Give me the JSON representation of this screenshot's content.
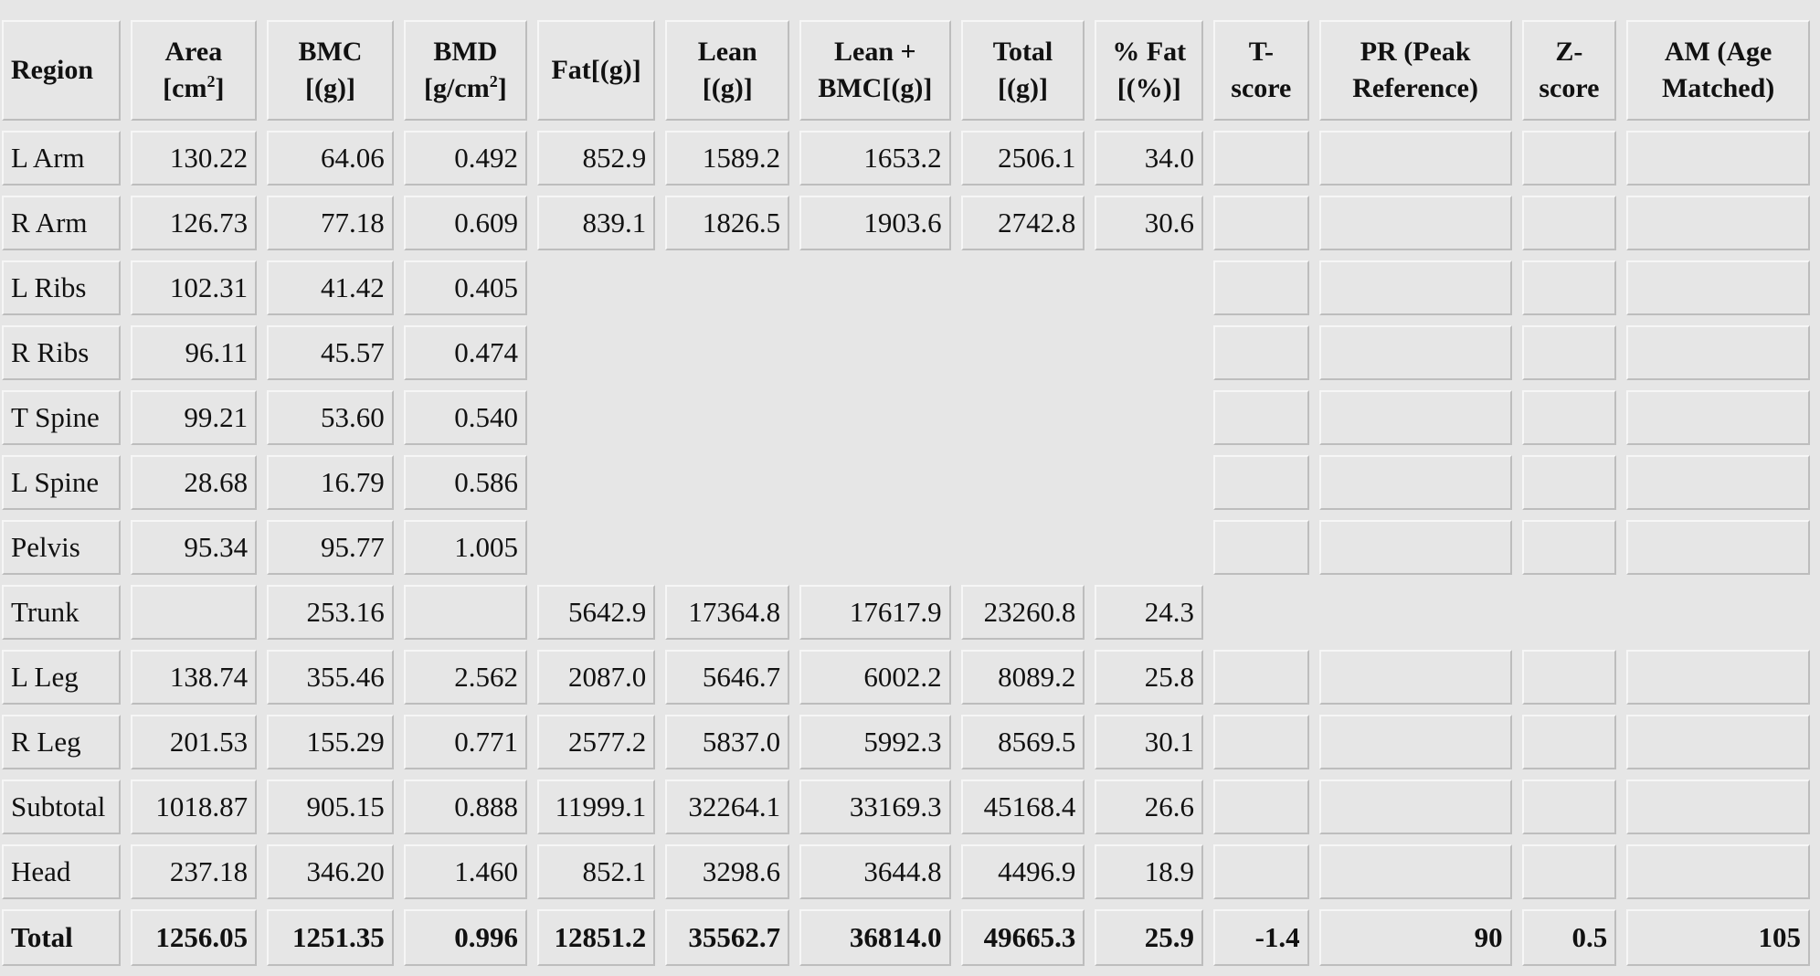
{
  "headers": [
    {
      "lines": [
        "Region"
      ]
    },
    {
      "lines": [
        "Area",
        "[cm2]"
      ]
    },
    {
      "lines": [
        "BMC",
        "[(g)]"
      ]
    },
    {
      "lines": [
        "BMD",
        "[g/cm2]"
      ]
    },
    {
      "lines": [
        "Fat[(g)]"
      ]
    },
    {
      "lines": [
        "Lean",
        "[(g)]"
      ]
    },
    {
      "lines": [
        "Lean +",
        "BMC[(g)]"
      ]
    },
    {
      "lines": [
        "Total",
        "[(g)]"
      ]
    },
    {
      "lines": [
        "% Fat",
        "[(%)]"
      ]
    },
    {
      "lines": [
        "T-",
        "score"
      ]
    },
    {
      "lines": [
        "PR (Peak",
        "Reference)"
      ]
    },
    {
      "lines": [
        "Z-",
        "score"
      ]
    },
    {
      "lines": [
        "AM (Age",
        "Matched)"
      ]
    }
  ],
  "rows": [
    {
      "cells": [
        "L Arm",
        "130.22",
        "64.06",
        "0.492",
        "852.9",
        "1589.2",
        "1653.2",
        "2506.1",
        "34.0",
        "",
        "",
        "",
        ""
      ]
    },
    {
      "cells": [
        "R Arm",
        "126.73",
        "77.18",
        "0.609",
        "839.1",
        "1826.5",
        "1903.6",
        "2742.8",
        "30.6",
        "",
        "",
        "",
        ""
      ]
    },
    {
      "cells": [
        "L Ribs",
        "102.31",
        "41.42",
        "0.405",
        null,
        null,
        null,
        null,
        null,
        "",
        "",
        "",
        ""
      ]
    },
    {
      "cells": [
        "R Ribs",
        "96.11",
        "45.57",
        "0.474",
        null,
        null,
        null,
        null,
        null,
        "",
        "",
        "",
        ""
      ]
    },
    {
      "cells": [
        "T Spine",
        "99.21",
        "53.60",
        "0.540",
        null,
        null,
        null,
        null,
        null,
        "",
        "",
        "",
        ""
      ]
    },
    {
      "cells": [
        "L Spine",
        "28.68",
        "16.79",
        "0.586",
        null,
        null,
        null,
        null,
        null,
        "",
        "",
        "",
        ""
      ]
    },
    {
      "cells": [
        "Pelvis",
        "95.34",
        "95.77",
        "1.005",
        null,
        null,
        null,
        null,
        null,
        "",
        "",
        "",
        ""
      ]
    },
    {
      "cells": [
        "Trunk",
        "",
        "253.16",
        "",
        "5642.9",
        "17364.8",
        "17617.9",
        "23260.8",
        "24.3",
        null,
        null,
        null,
        null
      ]
    },
    {
      "cells": [
        "L Leg",
        "138.74",
        "355.46",
        "2.562",
        "2087.0",
        "5646.7",
        "6002.2",
        "8089.2",
        "25.8",
        "",
        "",
        "",
        ""
      ]
    },
    {
      "cells": [
        "R Leg",
        "201.53",
        "155.29",
        "0.771",
        "2577.2",
        "5837.0",
        "5992.3",
        "8569.5",
        "30.1",
        "",
        "",
        "",
        ""
      ]
    },
    {
      "cells": [
        "Subtotal",
        "1018.87",
        "905.15",
        "0.888",
        "11999.1",
        "32264.1",
        "33169.3",
        "45168.4",
        "26.6",
        "",
        "",
        "",
        ""
      ]
    },
    {
      "cells": [
        "Head",
        "237.18",
        "346.20",
        "1.460",
        "852.1",
        "3298.6",
        "3644.8",
        "4496.9",
        "18.9",
        "",
        "",
        "",
        ""
      ]
    },
    {
      "cells": [
        "Total",
        "1256.05",
        "1251.35",
        "0.996",
        "12851.2",
        "35562.7",
        "36814.0",
        "49665.3",
        "25.9",
        "-1.4",
        "90",
        "0.5",
        "105"
      ],
      "bold": true
    }
  ]
}
